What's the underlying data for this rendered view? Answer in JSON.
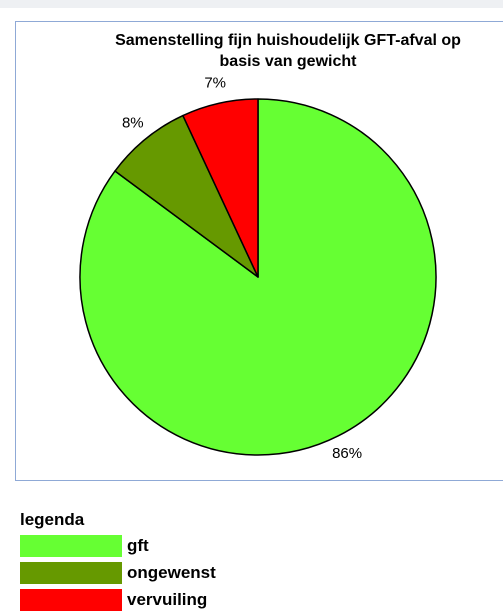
{
  "chart_data": {
    "type": "pie",
    "title": "Samenstelling fijn huishoudelijk GFT-afval op basis van gewicht",
    "title_lines": [
      "Samenstelling fijn huishoudelijk GFT-afval op",
      "basis van gewicht"
    ],
    "slices": [
      {
        "label": "gft",
        "value": 86,
        "data_label": "86%",
        "color": "#66ff33"
      },
      {
        "label": "ongewenst",
        "value": 8,
        "data_label": "8%",
        "color": "#669900"
      },
      {
        "label": "vervuiling",
        "value": 7,
        "data_label": "7%",
        "color": "#ff0000"
      }
    ],
    "start": "12 o'clock",
    "direction": "clockwise, starting with gft",
    "legend_placement": "bottom-left, outside chart"
  },
  "legend": {
    "title": "legenda",
    "items": [
      {
        "label": "gft",
        "color": "#66ff33"
      },
      {
        "label": "ongewenst",
        "color": "#669900"
      },
      {
        "label": "vervuiling",
        "color": "#ff0000"
      }
    ]
  }
}
